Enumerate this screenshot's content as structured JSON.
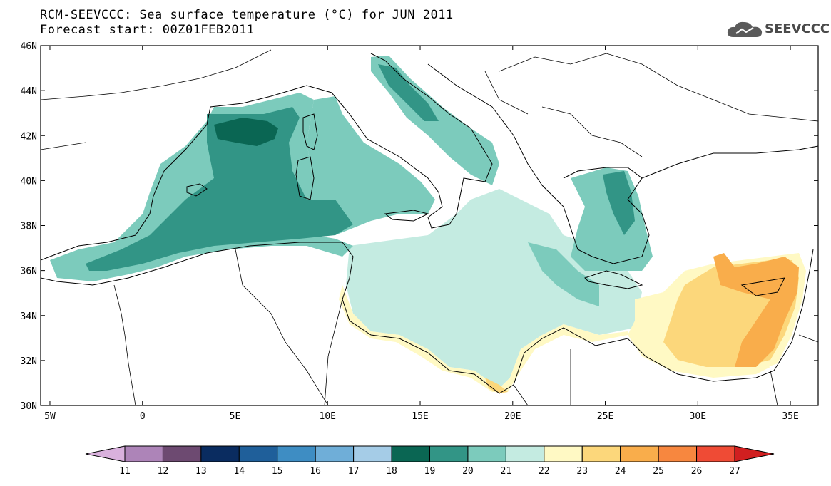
{
  "header": {
    "title_line1": "RCM-SEEVCCC: Sea surface temperature (°C) for JUN 2011",
    "title_line2": "Forecast start: 00Z01FEB2011",
    "logo_text": "SEEVCCC"
  },
  "map": {
    "lon_range": [
      -5.5,
      36.5
    ],
    "lat_range": [
      30,
      46
    ],
    "lat_ticks": [
      "46N",
      "44N",
      "42N",
      "40N",
      "38N",
      "36N",
      "34N",
      "32N",
      "30N"
    ],
    "lon_ticks": [
      "5W",
      "0",
      "5E",
      "10E",
      "15E",
      "20E",
      "25E",
      "30E",
      "35E"
    ]
  },
  "colorbar": {
    "labels": [
      "11",
      "12",
      "13",
      "14",
      "15",
      "16",
      "17",
      "18",
      "19",
      "20",
      "21",
      "22",
      "23",
      "24",
      "25",
      "26",
      "27"
    ],
    "colors": [
      "#d9b1dd",
      "#ad84b8",
      "#6d4a71",
      "#0a2c60",
      "#1f5f9a",
      "#3e8dc3",
      "#6faed8",
      "#a5cce7",
      "#0a6653",
      "#329586",
      "#7ccbbc",
      "#c4ebe1",
      "#fff9c4",
      "#fcd77b",
      "#f9ad4b",
      "#f7873f",
      "#ef4b35",
      "#d11f20"
    ]
  }
}
